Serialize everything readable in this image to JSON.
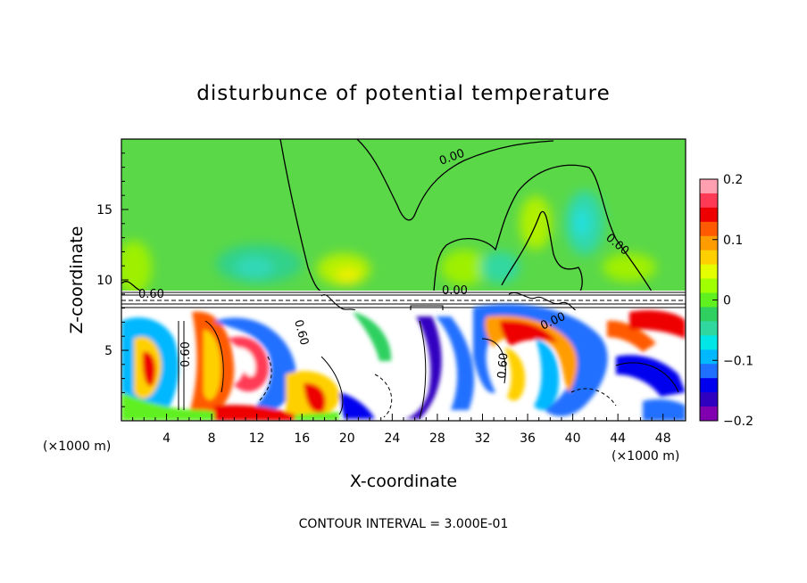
{
  "chart_data": {
    "type": "heatmap",
    "title": "disturbunce of potential temperature",
    "xlabel": "X-coordinate",
    "ylabel": "Z-coordinate",
    "x_unit": "(×1000 m)",
    "z_unit": "(×1000 m)",
    "xlim": [
      0,
      50
    ],
    "ylim": [
      0,
      20
    ],
    "x_ticks": [
      4,
      8,
      12,
      16,
      20,
      24,
      28,
      32,
      36,
      40,
      44,
      48
    ],
    "y_ticks": [
      5,
      10,
      15
    ],
    "colorbar": {
      "range": [
        -0.2,
        0.2
      ],
      "tick_labels": [
        "0.2",
        "0.1",
        "0",
        "−0.1",
        "−0.2"
      ],
      "tick_values": [
        0.2,
        0.1,
        0,
        -0.1,
        -0.2
      ],
      "colors": [
        "#ff9fb0",
        "#ff3a55",
        "#ee0000",
        "#ff5a00",
        "#ff9c00",
        "#ffd000",
        "#e4ff00",
        "#a0ff00",
        "#60f020",
        "#2fd060",
        "#30d8a0",
        "#00e6e6",
        "#00b8ff",
        "#2070ff",
        "#0000ee",
        "#3000c0",
        "#8000b0"
      ]
    },
    "contour_labels": [
      "0.00",
      "0.60",
      "0.00",
      "0.00",
      "0.00",
      "0.60",
      "0.60",
      "0.60"
    ],
    "footer": "CONTOUR INTERVAL = 3.000E-01"
  }
}
